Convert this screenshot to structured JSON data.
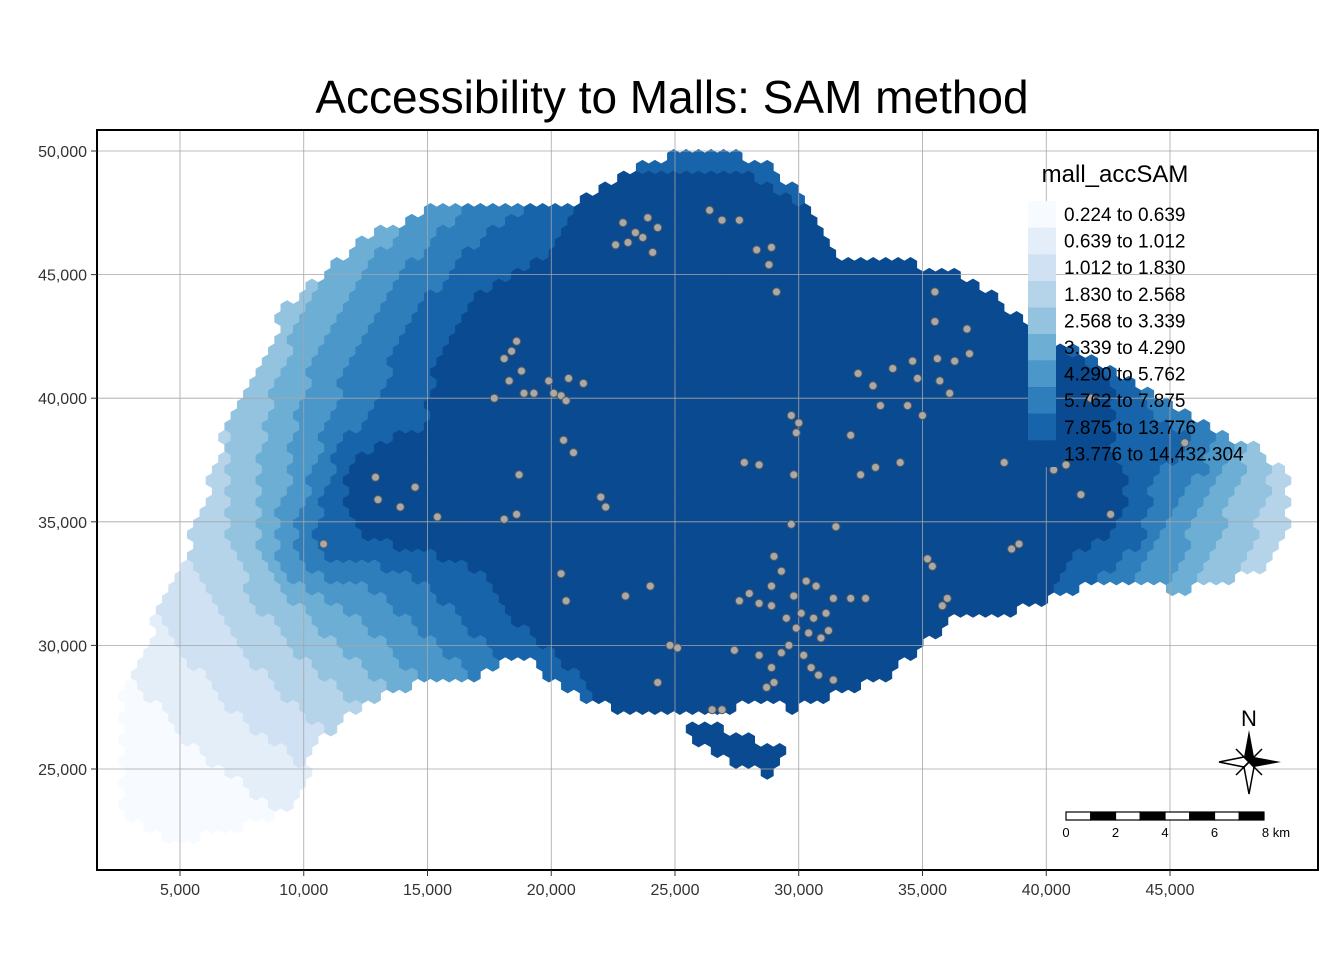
{
  "title": "Accessibility to Malls: SAM method",
  "axes": {
    "x_ticks": [
      "5,000",
      "10,000",
      "15,000",
      "20,000",
      "25,000",
      "30,000",
      "35,000",
      "40,000",
      "45,000"
    ],
    "y_ticks": [
      "50,000",
      "45,000",
      "40,000",
      "35,000",
      "30,000",
      "25,000"
    ]
  },
  "legend": {
    "title": "mall_accSAM",
    "classes": [
      {
        "label": "0.224 to 0.639",
        "color": "#f7fbff"
      },
      {
        "label": "0.639 to 1.012",
        "color": "#e3eef9"
      },
      {
        "label": "1.012 to 1.830",
        "color": "#cfe1f2"
      },
      {
        "label": "1.830 to 2.568",
        "color": "#b5d4e9"
      },
      {
        "label": "2.568 to 3.339",
        "color": "#93c3df"
      },
      {
        "label": "3.339 to 4.290",
        "color": "#6daed5"
      },
      {
        "label": "4.290 to 5.762",
        "color": "#4b97c9"
      },
      {
        "label": "5.762 to 7.875",
        "color": "#2f7ebc"
      },
      {
        "label": "7.875 to 13.776",
        "color": "#1864aa"
      },
      {
        "label": "13.776 to 14,432.304",
        "color": "#0a4a90"
      }
    ]
  },
  "north_arrow": {
    "label": "N"
  },
  "scale_bar": {
    "labels": [
      "0",
      "2",
      "4",
      "6",
      "8 km"
    ]
  },
  "chart_data": {
    "type": "map",
    "title": "Accessibility to Malls: SAM method",
    "xlim": [
      2500,
      50000
    ],
    "ylim": [
      21000,
      51000
    ],
    "x_ticks": [
      5000,
      10000,
      15000,
      20000,
      25000,
      30000,
      35000,
      40000,
      45000
    ],
    "y_ticks": [
      25000,
      30000,
      35000,
      40000,
      45000,
      50000
    ],
    "grid": true,
    "legend_position": "top-right",
    "malls": [
      [
        22900,
        47100
      ],
      [
        23400,
        46700
      ],
      [
        23900,
        47300
      ],
      [
        24300,
        46900
      ],
      [
        23100,
        46300
      ],
      [
        22600,
        46200
      ],
      [
        24100,
        45900
      ],
      [
        23700,
        46500
      ],
      [
        26400,
        47600
      ],
      [
        26900,
        47200
      ],
      [
        27600,
        47200
      ],
      [
        28300,
        46000
      ],
      [
        28900,
        46100
      ],
      [
        28800,
        45400
      ],
      [
        29100,
        44300
      ],
      [
        18600,
        42300
      ],
      [
        18400,
        41900
      ],
      [
        18100,
        41600
      ],
      [
        18800,
        41100
      ],
      [
        18300,
        40700
      ],
      [
        18900,
        40200
      ],
      [
        17700,
        40000
      ],
      [
        19300,
        40200
      ],
      [
        19900,
        40700
      ],
      [
        20400,
        40100
      ],
      [
        20700,
        40800
      ],
      [
        21300,
        40600
      ],
      [
        20600,
        39900
      ],
      [
        20100,
        40200
      ],
      [
        20500,
        38300
      ],
      [
        20900,
        37800
      ],
      [
        18700,
        36900
      ],
      [
        18100,
        35100
      ],
      [
        18600,
        35300
      ],
      [
        12900,
        36800
      ],
      [
        13000,
        35900
      ],
      [
        13900,
        35600
      ],
      [
        14500,
        36400
      ],
      [
        15400,
        35200
      ],
      [
        10800,
        34100
      ],
      [
        22000,
        36000
      ],
      [
        22200,
        35600
      ],
      [
        20400,
        32900
      ],
      [
        20600,
        31800
      ],
      [
        23000,
        32000
      ],
      [
        24000,
        32400
      ],
      [
        32400,
        41000
      ],
      [
        33000,
        40500
      ],
      [
        33800,
        41200
      ],
      [
        34800,
        40800
      ],
      [
        33300,
        39700
      ],
      [
        34400,
        39700
      ],
      [
        35000,
        39300
      ],
      [
        35700,
        40700
      ],
      [
        36100,
        40200
      ],
      [
        35600,
        41600
      ],
      [
        34600,
        41500
      ],
      [
        36300,
        41500
      ],
      [
        36800,
        42800
      ],
      [
        36900,
        41800
      ],
      [
        35500,
        43100
      ],
      [
        35500,
        44300
      ],
      [
        29700,
        39300
      ],
      [
        30000,
        39000
      ],
      [
        29900,
        38600
      ],
      [
        32100,
        38500
      ],
      [
        27800,
        37400
      ],
      [
        28400,
        37300
      ],
      [
        29800,
        36900
      ],
      [
        32500,
        36900
      ],
      [
        33100,
        37200
      ],
      [
        34100,
        37400
      ],
      [
        29700,
        34900
      ],
      [
        31500,
        34800
      ],
      [
        29000,
        33600
      ],
      [
        29300,
        33000
      ],
      [
        28900,
        32400
      ],
      [
        27600,
        31800
      ],
      [
        28000,
        32100
      ],
      [
        28400,
        31700
      ],
      [
        28900,
        31600
      ],
      [
        29800,
        32000
      ],
      [
        30300,
        32600
      ],
      [
        30700,
        32400
      ],
      [
        31400,
        31900
      ],
      [
        32100,
        31900
      ],
      [
        32700,
        31900
      ],
      [
        29500,
        31100
      ],
      [
        30100,
        31300
      ],
      [
        30600,
        31100
      ],
      [
        31100,
        31300
      ],
      [
        29900,
        30700
      ],
      [
        30400,
        30500
      ],
      [
        30900,
        30300
      ],
      [
        31200,
        30600
      ],
      [
        29600,
        30000
      ],
      [
        30200,
        29600
      ],
      [
        29300,
        29700
      ],
      [
        28900,
        29100
      ],
      [
        28400,
        29600
      ],
      [
        27400,
        29800
      ],
      [
        30800,
        28800
      ],
      [
        31400,
        28600
      ],
      [
        30500,
        29100
      ],
      [
        29000,
        28500
      ],
      [
        28700,
        28300
      ],
      [
        26500,
        27400
      ],
      [
        26900,
        27400
      ],
      [
        24800,
        30000
      ],
      [
        25100,
        29900
      ],
      [
        24300,
        28500
      ],
      [
        35200,
        33500
      ],
      [
        35400,
        33200
      ],
      [
        35800,
        31600
      ],
      [
        36000,
        31900
      ],
      [
        38600,
        33900
      ],
      [
        38900,
        34100
      ],
      [
        38300,
        37400
      ],
      [
        40300,
        37100
      ],
      [
        40800,
        37300
      ],
      [
        41400,
        36100
      ],
      [
        42600,
        35300
      ],
      [
        40200,
        40100
      ],
      [
        41800,
        40000
      ],
      [
        45600,
        38200
      ]
    ],
    "hex_cells": [
      [
        [
          3200,
          21800
        ],
        [
          9500,
          28000
        ]
      ],
      [
        [
          9000,
          28500
        ],
        [
          18000,
          38200
        ]
      ],
      [
        [
          8000,
          40000
        ],
        [
          25000,
          45000
        ]
      ],
      [
        [
          18000,
          33000
        ],
        [
          31000,
          36000
        ]
      ]
    ]
  }
}
